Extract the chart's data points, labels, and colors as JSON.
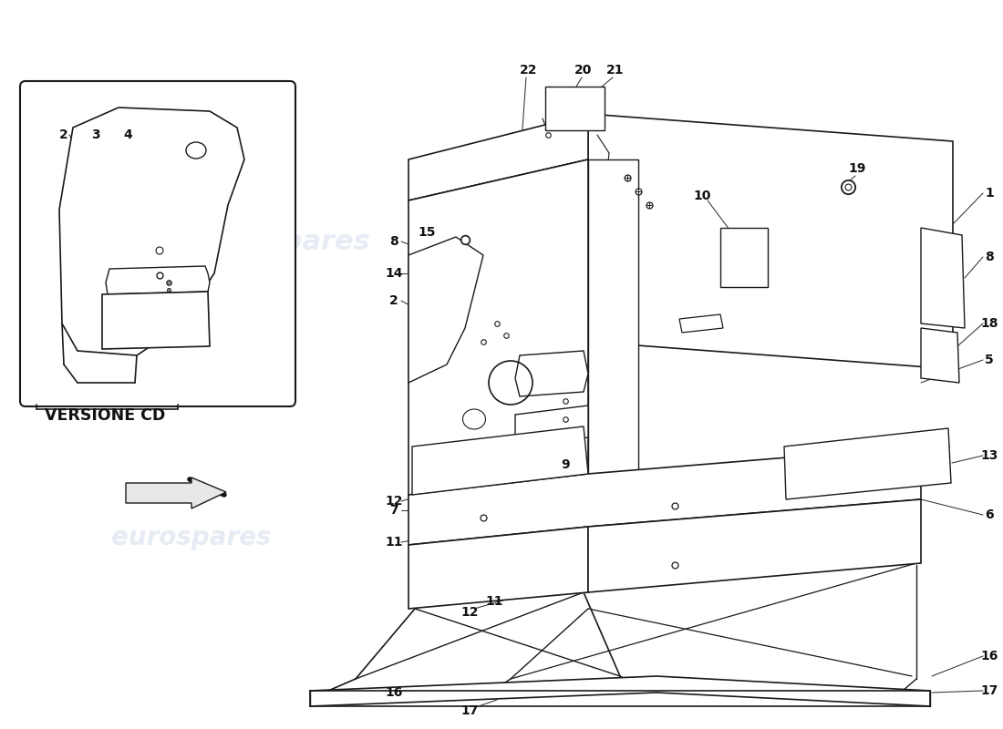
{
  "background_color": "#ffffff",
  "watermark_text": "eurospares",
  "watermark_color": "#c8d4e8",
  "watermark_alpha": 0.45,
  "inset_label": "VERSIONE CD",
  "line_color": "#1a1a1a",
  "text_color": "#111111",
  "figsize": [
    11.0,
    8.0
  ],
  "dpi": 100
}
